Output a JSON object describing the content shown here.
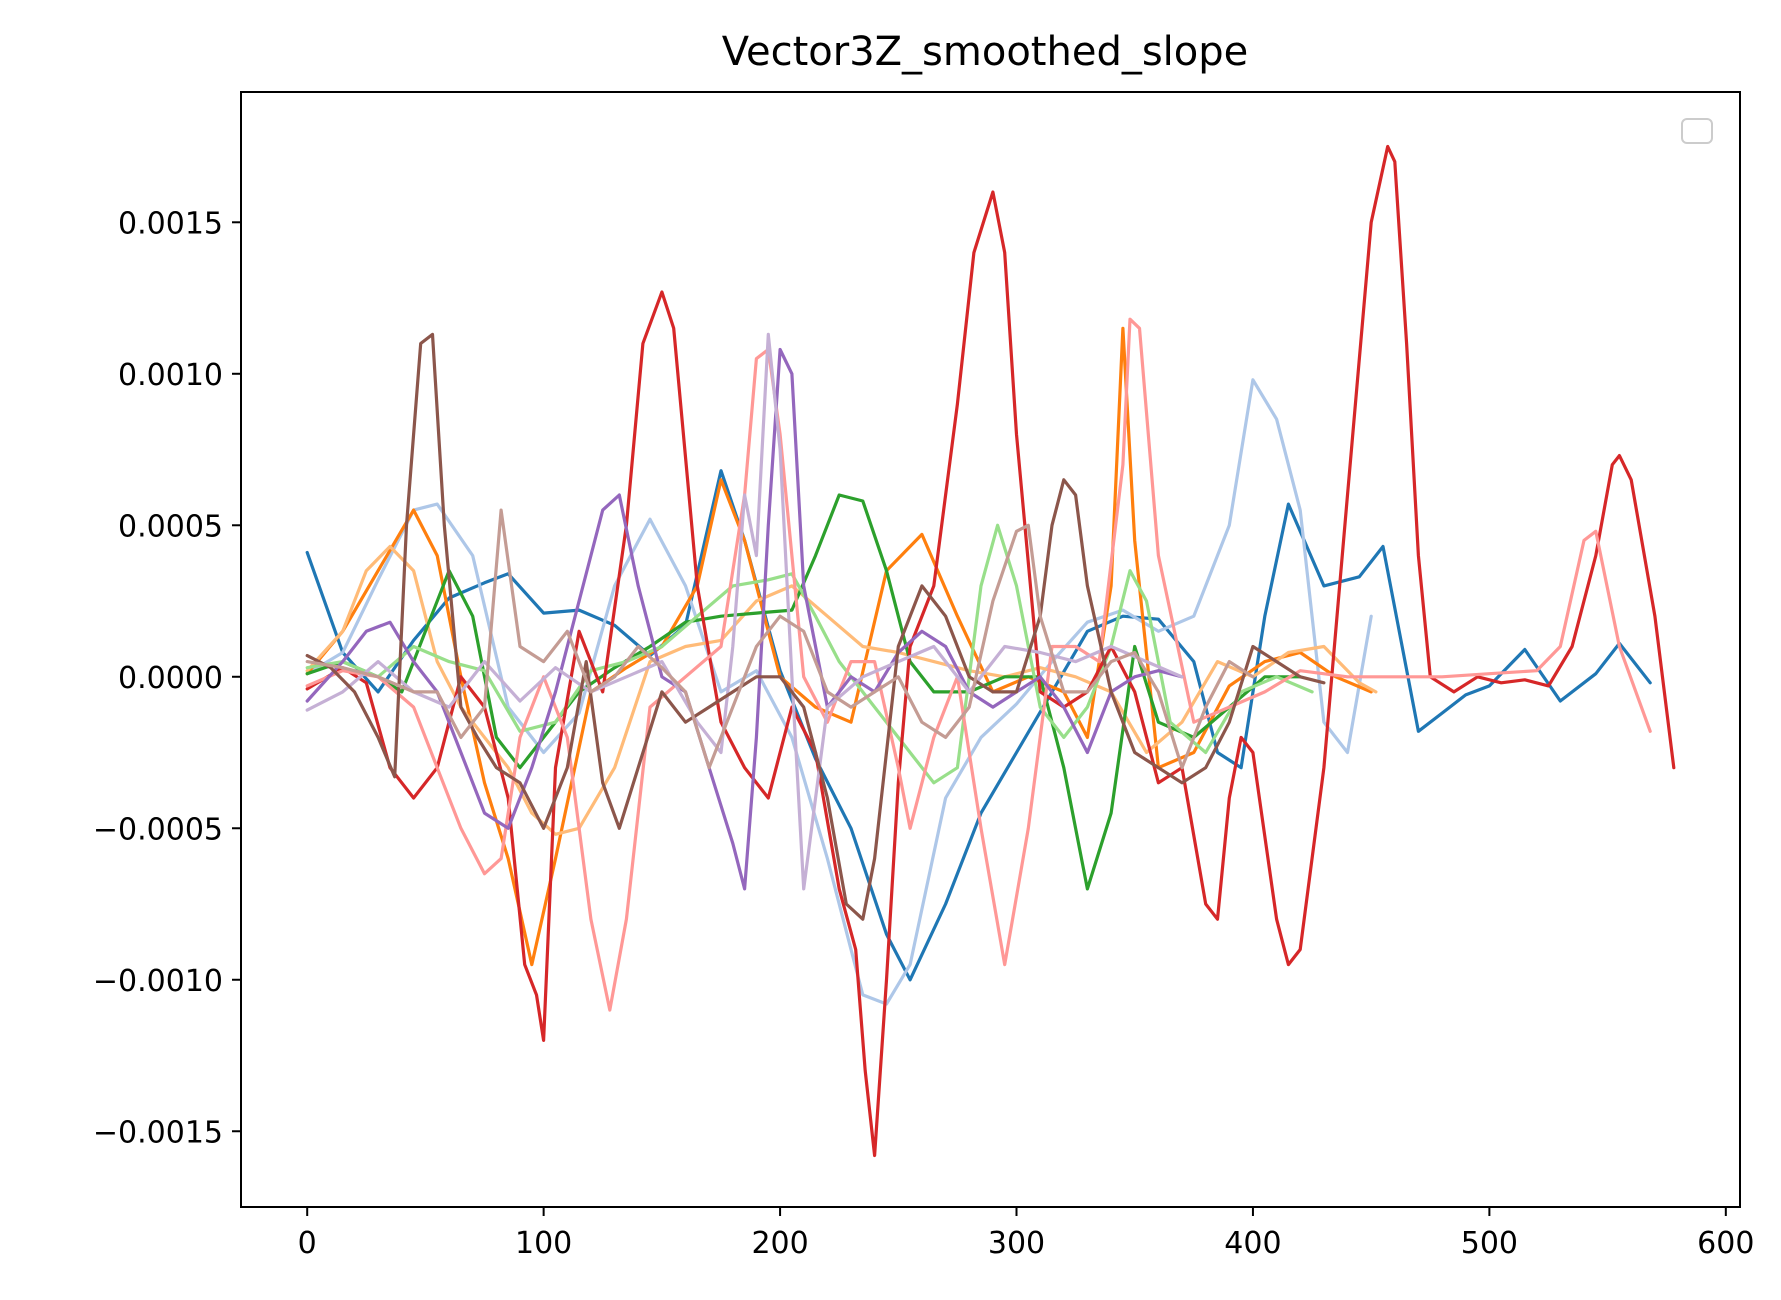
{
  "chart_data": {
    "type": "line",
    "title": "Vector3Z_smoothed_slope",
    "xlabel": "",
    "ylabel": "",
    "xlim": [
      -28,
      606
    ],
    "ylim": [
      -0.00175,
      0.00193
    ],
    "xticks": [
      0,
      100,
      200,
      300,
      400,
      500,
      600
    ],
    "xtick_labels": [
      "0",
      "100",
      "200",
      "300",
      "400",
      "500",
      "600"
    ],
    "yticks": [
      -0.0015,
      -0.001,
      -0.0005,
      0.0,
      0.0005,
      0.001,
      0.0015
    ],
    "ytick_labels": [
      "−0.0015",
      "−0.0010",
      "−0.0005",
      "0.0000",
      "0.0005",
      "0.0010",
      "0.0015"
    ],
    "grid": false,
    "legend": {
      "position": "upper-right",
      "entries": []
    },
    "series": [
      {
        "color": "#1f77b4",
        "x": [
          0,
          15,
          30,
          45,
          60,
          75,
          85,
          100,
          115,
          130,
          145,
          160,
          175,
          185,
          200,
          215,
          230,
          245,
          255,
          270,
          285,
          300,
          315,
          330,
          345,
          360,
          375,
          385,
          395,
          405,
          415,
          430,
          445,
          455,
          470,
          480,
          490,
          500,
          515,
          530,
          545,
          555,
          568
        ],
        "y": [
          0.00041,
          8e-05,
          -5e-05,
          0.00012,
          0.00026,
          0.00031,
          0.00034,
          0.00021,
          0.00022,
          0.00017,
          7e-05,
          0.00017,
          0.00068,
          0.00045,
          2e-05,
          -0.00027,
          -0.0005,
          -0.00085,
          -0.001,
          -0.00075,
          -0.00045,
          -0.00025,
          -5e-05,
          0.00015,
          0.0002,
          0.00019,
          5e-05,
          -0.00025,
          -0.0003,
          0.0002,
          0.00057,
          0.0003,
          0.00033,
          0.00043,
          -0.00018,
          -0.00012,
          -6e-05,
          -3e-05,
          9e-05,
          -8e-05,
          1e-05,
          0.00011,
          -2e-05
        ]
      },
      {
        "color": "#aec7e8",
        "x": [
          0,
          15,
          30,
          45,
          55,
          70,
          85,
          100,
          115,
          130,
          145,
          160,
          175,
          190,
          205,
          220,
          235,
          245,
          255,
          270,
          285,
          300,
          315,
          330,
          345,
          360,
          375,
          390,
          400,
          410,
          420,
          430,
          440,
          450
        ],
        "y": [
          1e-05,
          8e-05,
          0.00032,
          0.00055,
          0.00057,
          0.0004,
          -0.0001,
          -0.00025,
          -0.00012,
          0.0003,
          0.00052,
          0.0003,
          -5e-05,
          2e-05,
          -0.0002,
          -0.0006,
          -0.00105,
          -0.00108,
          -0.00095,
          -0.0004,
          -0.0002,
          -9e-05,
          5e-05,
          0.00018,
          0.00022,
          0.00015,
          0.0002,
          0.0005,
          0.00098,
          0.00085,
          0.00055,
          -0.00015,
          -0.00025,
          0.0002
        ]
      },
      {
        "color": "#ff7f0e",
        "x": [
          0,
          15,
          30,
          45,
          55,
          65,
          75,
          85,
          95,
          105,
          120,
          135,
          150,
          165,
          175,
          185,
          200,
          215,
          230,
          245,
          260,
          275,
          290,
          305,
          320,
          330,
          340,
          345,
          350,
          360,
          375,
          390,
          405,
          420,
          435,
          450
        ],
        "y": [
          1e-05,
          0.00015,
          0.00035,
          0.00055,
          0.0004,
          0.0,
          -0.00035,
          -0.0006,
          -0.00095,
          -0.0006,
          -5e-05,
          3e-05,
          0.0001,
          0.0003,
          0.00065,
          0.00045,
          0.0,
          -0.0001,
          -0.00015,
          0.00035,
          0.00047,
          0.0002,
          -5e-05,
          0.0,
          -5e-05,
          -0.0002,
          0.0003,
          0.00115,
          0.00045,
          -0.0003,
          -0.00025,
          -3e-05,
          5e-05,
          8e-05,
          0.0,
          -5e-05
        ]
      },
      {
        "color": "#ffbb78",
        "x": [
          0,
          15,
          25,
          35,
          45,
          55,
          65,
          75,
          85,
          95,
          105,
          115,
          130,
          145,
          160,
          175,
          190,
          205,
          220,
          235,
          250,
          265,
          280,
          295,
          310,
          325,
          340,
          355,
          370,
          385,
          400,
          415,
          430,
          445,
          452
        ],
        "y": [
          2e-05,
          0.00015,
          0.00035,
          0.00043,
          0.00035,
          5e-05,
          -0.0001,
          -0.0002,
          -0.0003,
          -0.00045,
          -0.00052,
          -0.0005,
          -0.0003,
          5e-05,
          0.0001,
          0.00012,
          0.00025,
          0.0003,
          0.0002,
          0.0001,
          8e-05,
          5e-05,
          2e-05,
          0.0,
          3e-05,
          0.0,
          -5e-05,
          -0.00025,
          -0.00015,
          5e-05,
          0.0,
          8e-05,
          0.0001,
          -2e-05,
          -5e-05
        ]
      },
      {
        "color": "#2ca02c",
        "x": [
          0,
          15,
          30,
          40,
          50,
          60,
          70,
          80,
          90,
          100,
          115,
          130,
          145,
          160,
          175,
          190,
          205,
          215,
          225,
          235,
          245,
          255,
          265,
          280,
          295,
          310,
          320,
          330,
          340,
          350,
          360,
          375,
          390,
          405,
          420
        ],
        "y": [
          1e-05,
          5e-05,
          0.0,
          -5e-05,
          0.00015,
          0.00035,
          0.0002,
          -0.0002,
          -0.0003,
          -0.0002,
          -5e-05,
          3e-05,
          0.0001,
          0.00018,
          0.0002,
          0.00021,
          0.00022,
          0.0004,
          0.0006,
          0.00058,
          0.00035,
          5e-05,
          -5e-05,
          -5e-05,
          0.0,
          0.0,
          -0.0003,
          -0.0007,
          -0.00045,
          0.0001,
          -0.00015,
          -0.0002,
          -0.0001,
          0.0,
          0.0
        ]
      },
      {
        "color": "#98df8a",
        "x": [
          0,
          15,
          30,
          45,
          60,
          75,
          90,
          105,
          120,
          135,
          150,
          165,
          180,
          195,
          205,
          215,
          225,
          240,
          255,
          265,
          275,
          285,
          292,
          300,
          310,
          320,
          330,
          340,
          348,
          355,
          365,
          380,
          395,
          410,
          425
        ],
        "y": [
          3e-05,
          5e-05,
          0.0,
          0.0001,
          5e-05,
          2e-05,
          -0.00018,
          -0.00015,
          2e-05,
          5e-05,
          0.0001,
          0.0002,
          0.0003,
          0.00032,
          0.00034,
          0.0002,
          5e-05,
          -0.0001,
          -0.00025,
          -0.00035,
          -0.0003,
          0.0003,
          0.0005,
          0.0003,
          -0.0001,
          -0.0002,
          -0.0001,
          0.0001,
          0.00035,
          0.00025,
          -0.00015,
          -0.00025,
          -5e-05,
          0.0,
          -5e-05
        ]
      },
      {
        "color": "#d62728",
        "x": [
          0,
          15,
          25,
          35,
          45,
          55,
          65,
          75,
          85,
          92,
          97,
          100,
          105,
          115,
          125,
          135,
          142,
          150,
          155,
          165,
          175,
          185,
          195,
          205,
          215,
          225,
          232,
          236,
          240,
          245,
          250,
          255,
          265,
          275,
          282,
          290,
          295,
          300,
          310,
          320,
          330,
          340,
          350,
          360,
          370,
          380,
          385,
          390,
          395,
          400,
          410,
          415,
          420,
          430,
          440,
          450,
          457,
          460,
          465,
          470,
          475,
          485,
          495,
          505,
          515,
          525,
          535,
          545,
          552,
          555,
          560,
          570,
          578
        ],
        "y": [
          -4e-05,
          3e-05,
          -2e-05,
          -0.0003,
          -0.0004,
          -0.0003,
          0.0,
          -0.0001,
          -0.0004,
          -0.00095,
          -0.00105,
          -0.0012,
          -0.0003,
          0.00015,
          -5e-05,
          0.0005,
          0.0011,
          0.00127,
          0.00115,
          0.0003,
          -0.00015,
          -0.0003,
          -0.0004,
          -0.0001,
          -0.00025,
          -0.0007,
          -0.0009,
          -0.0013,
          -0.00158,
          -0.001,
          -0.00035,
          0.0001,
          0.0003,
          0.0009,
          0.0014,
          0.0016,
          0.0014,
          0.0008,
          -5e-05,
          -0.0001,
          -5e-05,
          0.0001,
          -5e-05,
          -0.00035,
          -0.0003,
          -0.00075,
          -0.0008,
          -0.0004,
          -0.0002,
          -0.00025,
          -0.0008,
          -0.00095,
          -0.0009,
          -0.0003,
          0.0006,
          0.0015,
          0.00175,
          0.0017,
          0.0011,
          0.0004,
          0.0,
          -5e-05,
          0.0,
          -2e-05,
          -1e-05,
          -3e-05,
          0.0001,
          0.0004,
          0.0007,
          0.00073,
          0.00065,
          0.0002,
          -0.0003
        ]
      },
      {
        "color": "#ff9896",
        "x": [
          0,
          15,
          30,
          45,
          55,
          65,
          75,
          82,
          90,
          100,
          110,
          120,
          128,
          135,
          145,
          160,
          175,
          185,
          190,
          195,
          200,
          210,
          220,
          230,
          240,
          250,
          255,
          265,
          275,
          285,
          295,
          305,
          315,
          325,
          335,
          345,
          348,
          352,
          360,
          375,
          390,
          405,
          420,
          440,
          460,
          480,
          500,
          520,
          530,
          540,
          545,
          555,
          568
        ],
        "y": [
          -3e-05,
          2e-05,
          0.0,
          -0.0001,
          -0.0003,
          -0.0005,
          -0.00065,
          -0.0006,
          -0.0002,
          0.0,
          -0.0002,
          -0.0008,
          -0.0011,
          -0.0008,
          -0.0001,
          0.0,
          0.0001,
          0.0006,
          0.00105,
          0.00108,
          0.0008,
          0.0,
          -0.00015,
          5e-05,
          5e-05,
          -0.0003,
          -0.0005,
          -0.0002,
          0.0,
          -0.0005,
          -0.00095,
          -0.0005,
          0.0001,
          0.0001,
          5e-05,
          0.0007,
          0.00118,
          0.00115,
          0.0004,
          -0.00015,
          -0.0001,
          -5e-05,
          2e-05,
          0.0,
          0.0,
          0.0,
          1e-05,
          2e-05,
          0.0001,
          0.00045,
          0.00048,
          0.0001,
          -0.00018
        ]
      },
      {
        "color": "#9467bd",
        "x": [
          0,
          15,
          25,
          35,
          45,
          55,
          65,
          75,
          85,
          95,
          105,
          115,
          125,
          132,
          140,
          150,
          160,
          170,
          180,
          185,
          190,
          195,
          200,
          205,
          210,
          220,
          230,
          240,
          250,
          260,
          270,
          280,
          290,
          300,
          310,
          320,
          330,
          340,
          350,
          360,
          370
        ],
        "y": [
          -8e-05,
          5e-05,
          0.00015,
          0.00018,
          5e-05,
          -5e-05,
          -0.00025,
          -0.00045,
          -0.0005,
          -0.0003,
          -5e-05,
          0.00025,
          0.00055,
          0.0006,
          0.0003,
          0.0,
          -5e-05,
          -0.0003,
          -0.00055,
          -0.0007,
          -0.0002,
          0.0005,
          0.00108,
          0.001,
          0.0003,
          -0.0001,
          0.0,
          -5e-05,
          8e-05,
          0.00015,
          0.0001,
          -5e-05,
          -0.0001,
          -5e-05,
          0.0,
          -0.0001,
          -0.00025,
          -5e-05,
          0.0,
          2e-05,
          0.0
        ]
      },
      {
        "color": "#c5b0d5",
        "x": [
          0,
          15,
          30,
          45,
          60,
          75,
          90,
          105,
          120,
          135,
          150,
          165,
          175,
          180,
          185,
          190,
          195,
          200,
          205,
          210,
          220,
          235,
          250,
          265,
          280,
          295,
          310,
          325,
          340,
          355,
          370
        ],
        "y": [
          -0.00011,
          -5e-05,
          5e-05,
          -5e-05,
          -0.0001,
          5e-05,
          -8e-05,
          3e-05,
          -5e-05,
          0.0,
          5e-05,
          -0.00015,
          -0.00025,
          0.0001,
          0.0006,
          0.0004,
          0.00113,
          0.00075,
          0.0,
          -0.0007,
          -0.0001,
          0.0,
          5e-05,
          0.0001,
          -5e-05,
          0.0001,
          8e-05,
          5e-05,
          0.0001,
          5e-05,
          0.0
        ]
      },
      {
        "color": "#8c564b",
        "x": [
          0,
          10,
          20,
          30,
          37,
          42,
          48,
          53,
          58,
          65,
          72,
          80,
          90,
          100,
          110,
          118,
          125,
          132,
          140,
          150,
          160,
          170,
          180,
          190,
          200,
          210,
          220,
          228,
          235,
          240,
          250,
          260,
          270,
          280,
          290,
          300,
          310,
          315,
          320,
          325,
          330,
          340,
          350,
          360,
          370,
          380,
          390,
          400,
          410,
          420,
          430
        ],
        "y": [
          7e-05,
          3e-05,
          -5e-05,
          -0.0002,
          -0.00033,
          0.0005,
          0.0011,
          0.00113,
          0.0005,
          -0.0001,
          -0.0002,
          -0.0003,
          -0.00035,
          -0.0005,
          -0.0003,
          5e-05,
          -0.00035,
          -0.0005,
          -0.0003,
          -5e-05,
          -0.00015,
          -0.0001,
          -5e-05,
          0.0,
          0.0,
          -0.0001,
          -0.0004,
          -0.00075,
          -0.0008,
          -0.0006,
          0.0001,
          0.0003,
          0.0002,
          0.0,
          -5e-05,
          -5e-05,
          0.0002,
          0.0005,
          0.00065,
          0.0006,
          0.0003,
          -5e-05,
          -0.00025,
          -0.0003,
          -0.00035,
          -0.0003,
          -0.00015,
          0.0001,
          5e-05,
          0.0,
          -2e-05
        ]
      },
      {
        "color": "#c49c94",
        "x": [
          0,
          15,
          30,
          45,
          55,
          65,
          75,
          82,
          90,
          100,
          110,
          120,
          130,
          140,
          150,
          160,
          170,
          180,
          190,
          200,
          210,
          220,
          230,
          240,
          250,
          260,
          270,
          280,
          290,
          300,
          305,
          310,
          320,
          330,
          340,
          350,
          360,
          370,
          380,
          390,
          400
        ],
        "y": [
          5e-05,
          3e-05,
          0.0,
          -5e-05,
          -5e-05,
          -0.0002,
          -0.0001,
          0.00055,
          0.0001,
          5e-05,
          0.00015,
          -5e-05,
          0.0,
          0.0001,
          3e-05,
          -5e-05,
          -0.0003,
          -0.0001,
          0.0001,
          0.0002,
          0.00015,
          -5e-05,
          -0.0001,
          -5e-05,
          0.0,
          -0.00015,
          -0.0002,
          -0.0001,
          0.00025,
          0.00048,
          0.0005,
          0.0002,
          -5e-05,
          -5e-05,
          5e-05,
          8e-05,
          -5e-05,
          -0.0003,
          -0.0001,
          5e-05,
          0.0
        ]
      }
    ]
  }
}
